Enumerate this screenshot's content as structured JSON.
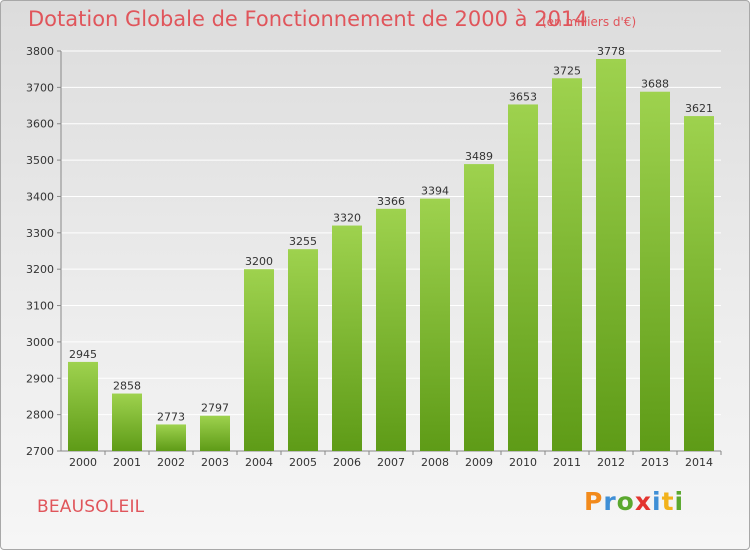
{
  "title": "Dotation Globale de Fonctionnement de 2000 à 2014",
  "subtitle": "(en milliers d'€)",
  "commune": "BEAUSOLEIL",
  "logo": {
    "text": "Proxiti",
    "letter_colors": [
      "#f28a1b",
      "#3f8fd6",
      "#5aa82e",
      "#e3342f",
      "#3f8fd6",
      "#f2b21b",
      "#5aa82e"
    ]
  },
  "colors": {
    "bar_light": "#9ed24e",
    "bar_dark": "#5e9b17",
    "text": "#333333",
    "accent": "#e0555b"
  },
  "chart_data": {
    "type": "bar",
    "categories": [
      "2000",
      "2001",
      "2002",
      "2003",
      "2004",
      "2005",
      "2006",
      "2007",
      "2008",
      "2009",
      "2010",
      "2011",
      "2012",
      "2013",
      "2014"
    ],
    "values": [
      2945,
      2858,
      2773,
      2797,
      3200,
      3255,
      3320,
      3366,
      3394,
      3489,
      3653,
      3725,
      3778,
      3688,
      3621
    ],
    "ylim": [
      2700,
      3800
    ],
    "yticks": [
      2700,
      2800,
      2900,
      3000,
      3100,
      3200,
      3300,
      3400,
      3500,
      3600,
      3700,
      3800
    ],
    "grid": true,
    "xlabel": "",
    "ylabel": ""
  }
}
